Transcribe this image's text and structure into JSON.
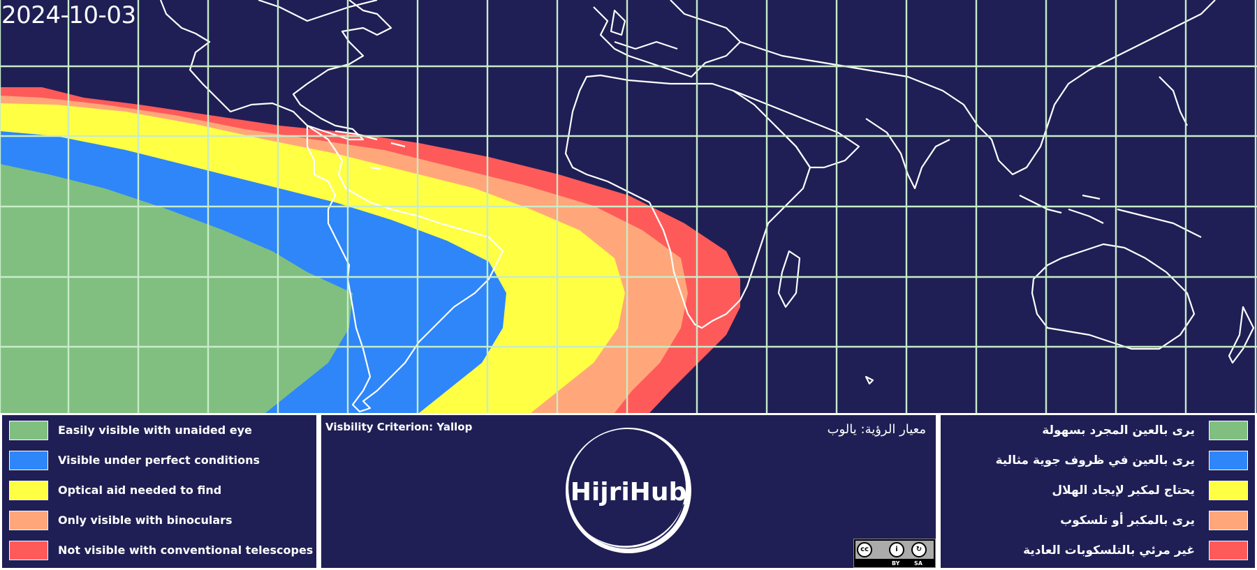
{
  "date": "2024-10-03",
  "criterion": {
    "en": "Visbility Criterion: Yallop",
    "ar": "معيار الرؤية: يالوب"
  },
  "logo": {
    "text": "HijriHub"
  },
  "license": {
    "cc": "cc",
    "by": "BY",
    "sa": "SA"
  },
  "legend": {
    "items": [
      {
        "en": "Easily visible with unaided eye",
        "ar": "يرى بالعين المجرد بسهولة",
        "color": "#80bf80"
      },
      {
        "en": "Visible under perfect conditions",
        "ar": "يرى بالعين في ظروف جوية مثالية",
        "color": "#2e86f9"
      },
      {
        "en": "Optical aid needed to find",
        "ar": "يحتاج لمكبر لإيجاد الهلال",
        "color": "#ffff44"
      },
      {
        "en": "Only visible with binoculars",
        "ar": "يرى بالمكبر أو تلسكوب",
        "color": "#ffa77a"
      },
      {
        "en": "Not visible with conventional telescopes",
        "ar": "غير مرئي بالتلسكوبات العادية",
        "color": "#ff5a5a"
      }
    ]
  },
  "map": {
    "background": "#1f1f55",
    "grid_color": "#c8ecc8",
    "coastline_color": "#ffffff",
    "zone_order": [
      "#ff5a5a",
      "#ffa77a",
      "#ffff44",
      "#2e86f9",
      "#80bf80"
    ]
  }
}
